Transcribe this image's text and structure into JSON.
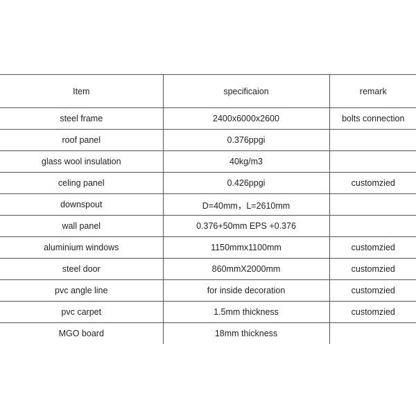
{
  "table": {
    "headers": [
      "Item",
      "specificaion",
      "remark"
    ],
    "rows": [
      [
        "steel frame",
        "2400x6000x2600",
        "bolts connection"
      ],
      [
        "roof panel",
        "0.376ppgi",
        ""
      ],
      [
        "glass wool insulation",
        "40kg/m3",
        ""
      ],
      [
        "celing panel",
        "0.426ppgi",
        "customzied"
      ],
      [
        "downspout",
        "D=40mm，L=2610mm",
        ""
      ],
      [
        "wall panel",
        "0.376+50mm EPS +0.376",
        ""
      ],
      [
        "aluminium windows",
        "1150mmx1100mm",
        "customzied"
      ],
      [
        "steel door",
        "860mmX2000mm",
        "customzied"
      ],
      [
        "pvc angle line",
        "for inside decoration",
        "customzied"
      ],
      [
        "pvc carpet",
        "1.5mm thickness",
        "customzied"
      ],
      [
        "MGO board",
        "18mm thickness",
        ""
      ]
    ]
  }
}
